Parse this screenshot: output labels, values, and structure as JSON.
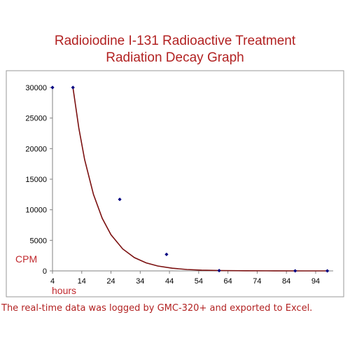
{
  "chart_data": {
    "type": "scatter",
    "title": "Radioiodine I-131 Radioactive Treatment",
    "subtitle": "Radiation Decay Graph",
    "xlabel": "hours",
    "ylabel": "CPM",
    "xlim": [
      4,
      100
    ],
    "ylim": [
      0,
      30000
    ],
    "x_ticks": [
      "4",
      "14",
      "24",
      "34",
      "44",
      "54",
      "64",
      "74",
      "84",
      "94"
    ],
    "y_ticks": [
      "0",
      "5000",
      "10000",
      "15000",
      "20000",
      "25000",
      "30000"
    ],
    "grid": false,
    "legend": "none",
    "series": [
      {
        "marker": "diamond",
        "color": "#000080",
        "points": [
          {
            "x": 4,
            "y": 30000
          },
          {
            "x": 11,
            "y": 30000
          },
          {
            "x": 27,
            "y": 11700
          },
          {
            "x": 43,
            "y": 2700
          },
          {
            "x": 61,
            "y": 50
          },
          {
            "x": 87,
            "y": 10
          },
          {
            "x": 98,
            "y": 5
          }
        ]
      }
    ],
    "trendline": {
      "type": "exponential",
      "color": "#7b1010",
      "points": [
        {
          "x": 11,
          "y": 30000
        },
        {
          "x": 13,
          "y": 23370
        },
        {
          "x": 15,
          "y": 18210
        },
        {
          "x": 18,
          "y": 12520
        },
        {
          "x": 21,
          "y": 8610
        },
        {
          "x": 24,
          "y": 5920
        },
        {
          "x": 28,
          "y": 3590
        },
        {
          "x": 32,
          "y": 2180
        },
        {
          "x": 36,
          "y": 1320
        },
        {
          "x": 40,
          "y": 800
        },
        {
          "x": 45,
          "y": 430
        },
        {
          "x": 50,
          "y": 230
        },
        {
          "x": 55,
          "y": 125
        },
        {
          "x": 62,
          "y": 52
        },
        {
          "x": 70,
          "y": 19
        },
        {
          "x": 80,
          "y": 6
        },
        {
          "x": 90,
          "y": 2
        },
        {
          "x": 98,
          "y": 1
        }
      ]
    }
  },
  "caption": "The real-time data was logged by GMC-320+ and exported to Excel."
}
